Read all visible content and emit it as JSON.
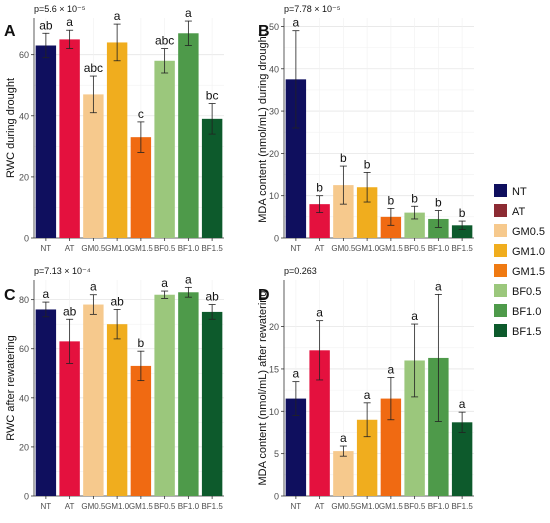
{
  "colors": {
    "NT": "#0f0f5e",
    "AT": "#e4113e",
    "GM0.5": "#f6c98d",
    "GM1.0": "#f0ad1e",
    "GM1.5": "#f06a12",
    "BF0.5": "#9bc77c",
    "BF1.0": "#4e9a4a",
    "BF1.5": "#0d5a2c",
    "panel_bg": "#ffffff",
    "grid": "#e6e6e6",
    "axis": "#333333"
  },
  "legend": {
    "placement": "right-middle",
    "entries": [
      {
        "label": "NT",
        "color": "#0f0f5e"
      },
      {
        "label": "AT",
        "color": "#8c2b33"
      },
      {
        "label": "GM0.5",
        "color": "#f6c98d"
      },
      {
        "label": "GM1.0",
        "color": "#f0ad1e"
      },
      {
        "label": "GM1.5",
        "color": "#ef7a12"
      },
      {
        "label": "BF0.5",
        "color": "#9bc77c"
      },
      {
        "label": "BF1.0",
        "color": "#4e9a4a"
      },
      {
        "label": "BF1.5",
        "color": "#0d5a2c"
      }
    ]
  },
  "chart_data": [
    {
      "panel": "A",
      "type": "bar",
      "pvalue": "p=5.6 × 10⁻⁵",
      "ylabel": "RWC during drought",
      "xlabel": "",
      "categories": [
        "NT",
        "AT",
        "GM0.5",
        "GM1.0",
        "GM1.5",
        "BF0.5",
        "BF1.0",
        "BF1.5"
      ],
      "values": [
        63,
        65,
        47,
        64,
        33,
        58,
        67,
        39
      ],
      "errors": [
        4,
        3,
        6,
        6,
        5,
        4,
        4,
        5
      ],
      "letters": [
        "ab",
        "a",
        "abc",
        "a",
        "c",
        "abc",
        "a",
        "bc"
      ],
      "ylim": [
        0,
        72
      ],
      "yticks": [
        0,
        20,
        40,
        60
      ],
      "grid": true
    },
    {
      "panel": "B",
      "type": "bar",
      "pvalue": "p=7.78 × 10⁻⁵",
      "ylabel": "MDA content (nmol/mL) during drought",
      "xlabel": "",
      "categories": [
        "NT",
        "AT",
        "GM0.5",
        "GM1.0",
        "GM1.5",
        "BF0.5",
        "BF1.0",
        "BF1.5"
      ],
      "values": [
        37.5,
        8,
        12.5,
        12,
        5,
        6,
        4.5,
        3
      ],
      "errors": [
        11.5,
        2,
        4.5,
        3.5,
        2,
        1.5,
        2,
        1
      ],
      "letters": [
        "a",
        "b",
        "b",
        "b",
        "b",
        "b",
        "b",
        "b"
      ],
      "ylim": [
        0,
        52
      ],
      "yticks": [
        0,
        10,
        20,
        30,
        40,
        50
      ],
      "grid": true
    },
    {
      "panel": "C",
      "type": "bar",
      "pvalue": "p=7.13 × 10⁻⁴",
      "ylabel": "RWC after rewatering",
      "xlabel": "",
      "categories": [
        "NT",
        "AT",
        "GM0.5",
        "GM1.0",
        "GM1.5",
        "BF0.5",
        "BF1.0",
        "BF1.5"
      ],
      "values": [
        76,
        63,
        78,
        70,
        53,
        82,
        83,
        75
      ],
      "errors": [
        3,
        9,
        4,
        6,
        6,
        1.5,
        2,
        3
      ],
      "letters": [
        "a",
        "ab",
        "a",
        "ab",
        "b",
        "a",
        "a",
        "ab"
      ],
      "ylim": [
        0,
        88
      ],
      "yticks": [
        0,
        20,
        40,
        60,
        80
      ],
      "grid": true
    },
    {
      "panel": "D",
      "type": "bar",
      "pvalue": "p=0.263",
      "ylabel": "MDA content (nmol/mL) after rewatering",
      "xlabel": "",
      "categories": [
        "NT",
        "AT",
        "GM0.5",
        "GM1.0",
        "GM1.5",
        "BF0.5",
        "BF1.0",
        "BF1.5"
      ],
      "values": [
        11.5,
        17.2,
        5.3,
        9,
        11.5,
        16,
        16.3,
        8.7
      ],
      "errors": [
        2,
        3.5,
        0.6,
        2,
        2.5,
        4.3,
        7.5,
        1.2
      ],
      "letters": [
        "a",
        "a",
        "a",
        "a",
        "a",
        "a",
        "a",
        "a"
      ],
      "ylim": [
        0,
        25.5
      ],
      "yticks": [
        0,
        5,
        10,
        15,
        20
      ],
      "grid": true
    }
  ]
}
